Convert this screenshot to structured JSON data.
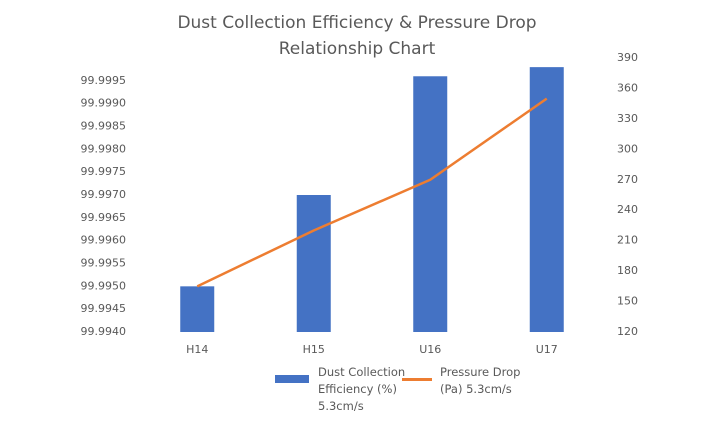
{
  "chart_data": {
    "type": "bar_line",
    "title": "Dust Collection Efficiency & Pressure Drop Relationship Chart",
    "categories": [
      "H14",
      "H15",
      "U16",
      "U17"
    ],
    "series": [
      {
        "name": "Dust Collection Efficiency (%) 5.3cm/s",
        "type": "bar",
        "color": "#4472c4",
        "values": [
          99.995,
          99.997,
          99.9996,
          99.9998
        ]
      },
      {
        "name": "Pressure Drop (Pa) 5.3cm/s",
        "type": "line",
        "axis": "y2",
        "color": "#ed7d31",
        "values": [
          165,
          220,
          270,
          350
        ]
      }
    ],
    "ylim": [
      99.994,
      100.0
    ],
    "yticks": [
      {
        "value": 99.994,
        "label": "99.9940"
      },
      {
        "value": 99.9945,
        "label": "99.9945"
      },
      {
        "value": 99.995,
        "label": "99.9950"
      },
      {
        "value": 99.9955,
        "label": "99.9955"
      },
      {
        "value": 99.996,
        "label": "99.9960"
      },
      {
        "value": 99.9965,
        "label": "99.9965"
      },
      {
        "value": 99.997,
        "label": "99.9970"
      },
      {
        "value": 99.9975,
        "label": "99.9975"
      },
      {
        "value": 99.998,
        "label": "99.9980"
      },
      {
        "value": 99.9985,
        "label": "99.9985"
      },
      {
        "value": 99.999,
        "label": "99.9990"
      },
      {
        "value": 99.9995,
        "label": "99.9995"
      }
    ],
    "y2lim": [
      120,
      390
    ],
    "y2ticks": [
      120,
      150,
      180,
      210,
      240,
      270,
      300,
      330,
      360,
      390
    ],
    "grid": false
  }
}
